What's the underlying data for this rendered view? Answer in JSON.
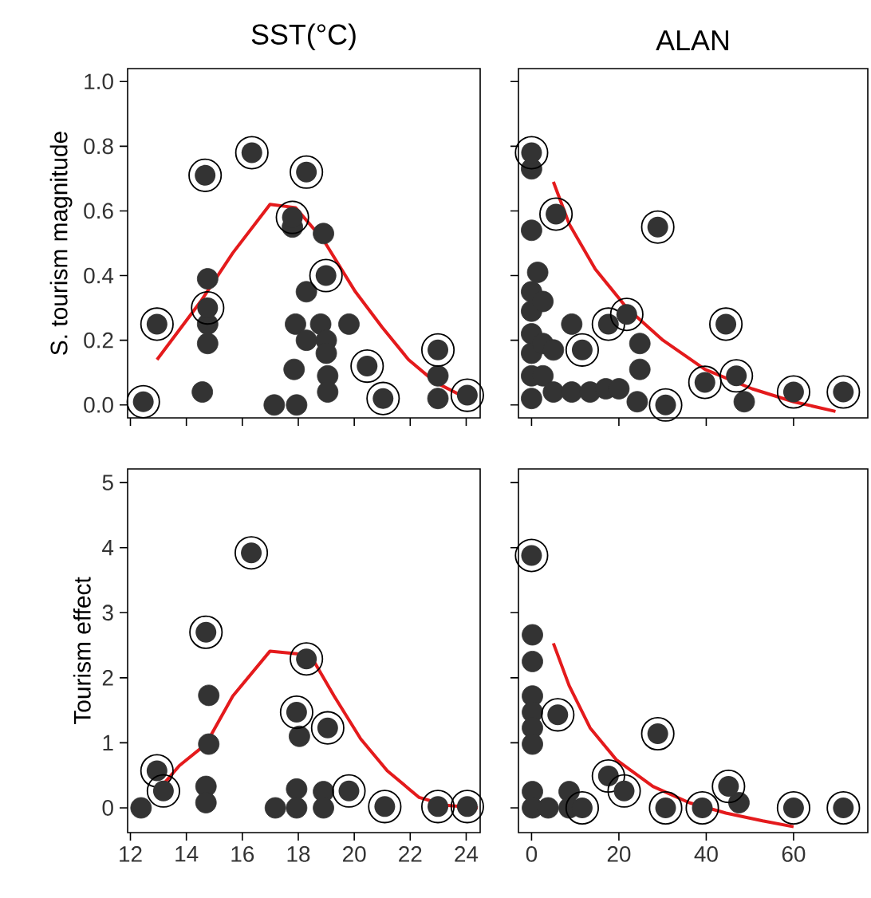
{
  "chart_data": [
    {
      "type": "scatter",
      "title": "SST(°C)",
      "ylabel": "S. tourism magnitude",
      "xlim": [
        11.9,
        24.5
      ],
      "ylim": [
        -0.04,
        1.04
      ],
      "xticks": [
        {
          "value": 12,
          "label": null
        },
        {
          "value": 14,
          "label": null
        },
        {
          "value": 16,
          "label": null
        },
        {
          "value": 18,
          "label": null
        },
        {
          "value": 20,
          "label": null
        },
        {
          "value": 22,
          "label": null
        },
        {
          "value": 24,
          "label": null
        }
      ],
      "yticks": [
        {
          "value": 0,
          "label": "0.0"
        },
        {
          "value": 0.2,
          "label": "0.2"
        },
        {
          "value": 0.4,
          "label": "0.4"
        },
        {
          "value": 0.6,
          "label": "0.6"
        },
        {
          "value": 0.8,
          "label": "0.8"
        },
        {
          "value": 1,
          "label": "1.0"
        }
      ],
      "tick_labels": "y",
      "marker": "circle",
      "series": [
        {
          "color": "#333333",
          "x": [
            14.76,
            14.76,
            14.76,
            14.57,
            17.79,
            18.9,
            18.29,
            17.9,
            18.8,
            19.81,
            18.29,
            19.0,
            19.0,
            17.85,
            19.05,
            19.05,
            17.14,
            17.94,
            22.99,
            22.99
          ],
          "values": [
            0.39,
            0.25,
            0.19,
            0.04,
            0.55,
            0.53,
            0.35,
            0.25,
            0.25,
            0.25,
            0.2,
            0.2,
            0.16,
            0.11,
            0.09,
            0.04,
            0.0,
            0.0,
            0.09,
            0.02
          ]
        },
        {
          "color": "#333333",
          "x": [
            12.46,
            12.95,
            14.67,
            14.76,
            16.34,
            18.29,
            17.79,
            18.99,
            20.46,
            21.03,
            22.99,
            24.04
          ],
          "values": [
            0.01,
            0.25,
            0.71,
            0.3,
            0.78,
            0.72,
            0.58,
            0.4,
            0.12,
            0.02,
            0.17,
            0.03
          ]
        },
        {
          "type": "line",
          "marker": "none",
          "color": "#e41a1c",
          "x": [
            12.95,
            14.51,
            15.66,
            16.99,
            17.9,
            18.9,
            20.04,
            21.0,
            21.94,
            22.9,
            24.04
          ],
          "values": [
            0.14,
            0.32,
            0.47,
            0.62,
            0.61,
            0.51,
            0.35,
            0.24,
            0.14,
            0.07,
            0.02
          ]
        }
      ]
    },
    {
      "type": "scatter",
      "title": "ALAN",
      "xlim": [
        -3,
        77
      ],
      "ylim": [
        -0.04,
        1.04
      ],
      "xticks": [
        {
          "value": 0,
          "label": null
        },
        {
          "value": 20,
          "label": null
        },
        {
          "value": 40,
          "label": null
        },
        {
          "value": 60,
          "label": null
        }
      ],
      "yticks": [
        {
          "value": 0,
          "label": null
        },
        {
          "value": 0.2,
          "label": null
        },
        {
          "value": 0.4,
          "label": null
        },
        {
          "value": 0.6,
          "label": null
        },
        {
          "value": 0.8,
          "label": null
        },
        {
          "value": 1,
          "label": null
        }
      ],
      "tick_labels": false,
      "marker": "circle",
      "series": [
        {
          "color": "#333333",
          "x": [
            0,
            0,
            1.4,
            0,
            0,
            0,
            0,
            0,
            0,
            2.6,
            2.6,
            2.6,
            5.0,
            5.0,
            9.2,
            9.2,
            13.4,
            17.0,
            20.0,
            24.8,
            24.8,
            24.2,
            48.7
          ],
          "values": [
            0.73,
            0.54,
            0.41,
            0.35,
            0.29,
            0.22,
            0.16,
            0.09,
            0.02,
            0.32,
            0.19,
            0.09,
            0.17,
            0.04,
            0.25,
            0.04,
            0.04,
            0.05,
            0.05,
            0.19,
            0.11,
            0.01,
            0.01
          ]
        },
        {
          "color": "#333333",
          "x": [
            0,
            5.6,
            28.9,
            11.6,
            17.6,
            21.8,
            30.7,
            44.5,
            39.7,
            46.9,
            60.0,
            71.4
          ],
          "values": [
            0.78,
            0.59,
            0.55,
            0.17,
            0.25,
            0.28,
            0.0,
            0.25,
            0.07,
            0.09,
            0.04,
            0.04
          ]
        },
        {
          "type": "line",
          "marker": "none",
          "color": "#e41a1c",
          "x": [
            5.0,
            8.6,
            14.6,
            21.8,
            30.1,
            39.7,
            50.5,
            60,
            69.6
          ],
          "values": [
            0.69,
            0.56,
            0.42,
            0.3,
            0.2,
            0.11,
            0.05,
            0.01,
            -0.02
          ]
        }
      ]
    },
    {
      "type": "scatter",
      "ylabel": "Tourism effect",
      "xlim": [
        11.9,
        24.5
      ],
      "ylim": [
        -0.38,
        5.21
      ],
      "xticks": [
        12,
        14,
        16,
        18,
        20,
        22,
        24
      ],
      "yticks": [
        0,
        1,
        2,
        3,
        4,
        5
      ],
      "marker": "circle",
      "series": [
        {
          "color": "#333333",
          "x": [
            14.8,
            14.8,
            14.7,
            14.7,
            12.38,
            18.04,
            17.18,
            17.94,
            17.94,
            18.9,
            18.9
          ],
          "values": [
            1.73,
            0.98,
            0.33,
            0.08,
            0.0,
            1.1,
            0.0,
            0.29,
            0.0,
            0.25,
            0.0
          ]
        },
        {
          "color": "#333333",
          "x": [
            16.32,
            14.7,
            12.95,
            13.18,
            18.29,
            17.94,
            19.05,
            19.81,
            21.09,
            22.99,
            24.04
          ],
          "values": [
            3.92,
            2.7,
            0.57,
            0.26,
            2.29,
            1.47,
            1.23,
            0.26,
            0.02,
            0.02,
            0.02
          ]
        },
        {
          "type": "line",
          "marker": "none",
          "color": "#e41a1c",
          "x": [
            12.95,
            13.75,
            14.7,
            15.66,
            16.99,
            17.94,
            18.51,
            19.28,
            20.23,
            21.18,
            22.32,
            23.28,
            24.42
          ],
          "values": [
            0.25,
            0.65,
            0.98,
            1.72,
            2.41,
            2.37,
            2.29,
            1.72,
            1.06,
            0.57,
            0.16,
            0.04,
            0.0
          ]
        }
      ]
    },
    {
      "type": "scatter",
      "xlim": [
        -3,
        77
      ],
      "ylim": [
        -0.38,
        5.21
      ],
      "xticks": [
        0,
        20,
        40,
        60
      ],
      "yticks": [
        {
          "value": 0,
          "label": null
        },
        {
          "value": 1,
          "label": null
        },
        {
          "value": 2,
          "label": null
        },
        {
          "value": 3,
          "label": null
        },
        {
          "value": 4,
          "label": null
        },
        {
          "value": 5,
          "label": null
        }
      ],
      "tick_labels": "x",
      "marker": "circle",
      "series": [
        {
          "color": "#333333",
          "x": [
            0.2,
            0.2,
            0.2,
            0.2,
            0.2,
            0.2,
            0.2,
            0.2,
            8.6,
            3.8,
            8.6,
            47.5
          ],
          "values": [
            2.66,
            2.25,
            1.72,
            1.47,
            1.23,
            0.98,
            0.25,
            0.0,
            0.25,
            0.0,
            0.0,
            0.08
          ]
        },
        {
          "color": "#333333",
          "x": [
            0,
            6.0,
            28.9,
            17.6,
            21.2,
            11.6,
            30.7,
            39.1,
            45.1,
            60,
            71.4
          ],
          "values": [
            3.88,
            1.43,
            1.14,
            0.49,
            0.26,
            0.0,
            0.0,
            0.0,
            0.33,
            0.0,
            0.0
          ]
        },
        {
          "type": "line",
          "marker": "none",
          "color": "#e41a1c",
          "x": [
            5.0,
            8.6,
            13.4,
            19.4,
            27.8,
            36.1,
            44.5,
            52.9,
            60
          ],
          "values": [
            2.53,
            1.88,
            1.23,
            0.74,
            0.33,
            0.08,
            -0.08,
            -0.2,
            -0.29
          ]
        }
      ]
    }
  ]
}
